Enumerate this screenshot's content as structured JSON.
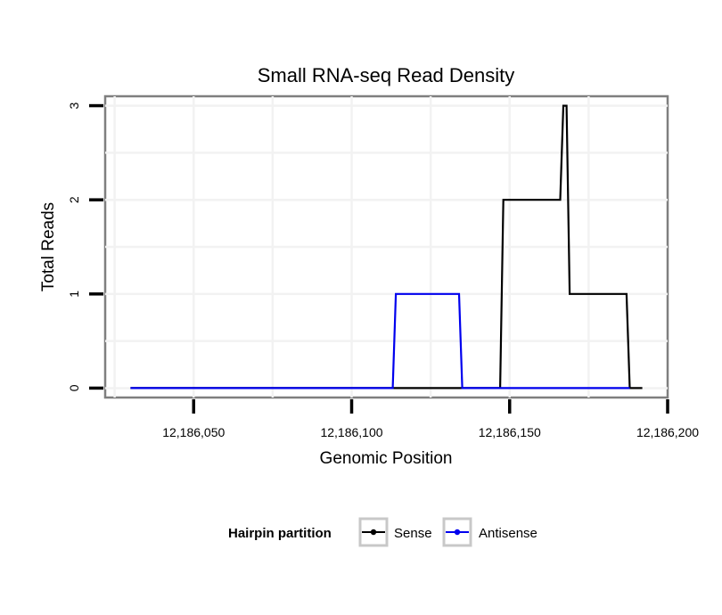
{
  "chart_data": {
    "type": "line",
    "title": "Small RNA-seq Read Density",
    "xlabel": "Genomic Position",
    "ylabel": "Total Reads",
    "xlim": [
      12186022,
      12186200
    ],
    "ylim": [
      -0.1,
      3.1
    ],
    "grid": true,
    "x_ticks": [
      12186050,
      12186100,
      12186150,
      12186200
    ],
    "x_tick_labels": [
      "12,186,050",
      "12,186,100",
      "12,186,150",
      "12,186,200"
    ],
    "y_ticks": [
      0,
      1,
      2,
      3
    ],
    "y_tick_labels": [
      "0",
      "1",
      "2",
      "3"
    ],
    "legend": {
      "title": "Hairpin partition",
      "position": "bottom",
      "entries": [
        "Sense",
        "Antisense"
      ]
    },
    "series": [
      {
        "name": "Sense",
        "color": "#000000",
        "x": [
          12186030,
          12186147,
          12186148,
          12186166,
          12186167,
          12186168,
          12186169,
          12186187,
          12186188,
          12186192
        ],
        "y": [
          0,
          0,
          2,
          2,
          3,
          3,
          1,
          1,
          0,
          0
        ]
      },
      {
        "name": "Antisense",
        "color": "#0000ee",
        "x": [
          12186030,
          12186113,
          12186114,
          12186134,
          12186135,
          12186188
        ],
        "y": [
          0,
          0,
          1,
          1,
          0,
          0
        ]
      }
    ]
  }
}
